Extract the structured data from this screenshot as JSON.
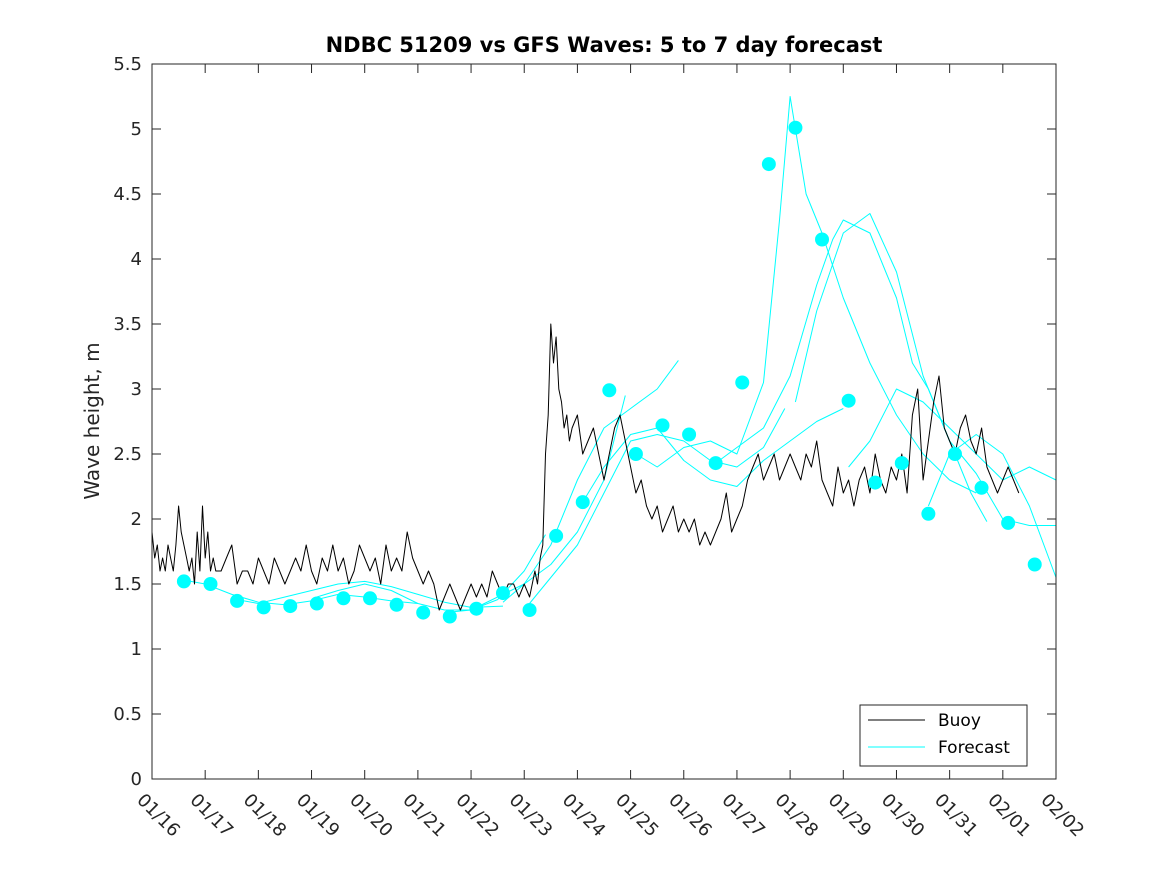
{
  "chart_data": {
    "type": "line",
    "title": "NDBC 51209 vs GFS Waves: 5 to 7 day forecast",
    "xlabel": "",
    "ylabel": "Wave height, m",
    "xlim": [
      0,
      17
    ],
    "ylim": [
      0,
      5.5
    ],
    "yticks": [
      0,
      0.5,
      1,
      1.5,
      2,
      2.5,
      3,
      3.5,
      4,
      4.5,
      5,
      5.5
    ],
    "ytick_labels": [
      "0",
      "0.5",
      "1",
      "1.5",
      "2",
      "2.5",
      "3",
      "3.5",
      "4",
      "4.5",
      "5",
      "5.5"
    ],
    "xtick_labels": [
      "01/16",
      "01/17",
      "01/18",
      "01/19",
      "01/20",
      "01/21",
      "01/22",
      "01/23",
      "01/24",
      "01/25",
      "01/26",
      "01/27",
      "01/28",
      "01/29",
      "01/30",
      "01/31",
      "02/01",
      "02/02"
    ],
    "legend_position": "bottom-right",
    "colors": {
      "buoy": "#000000",
      "forecast": "#00FFFF"
    },
    "series": [
      {
        "name": "Buoy",
        "role": "buoy",
        "x": [
          0.0,
          0.05,
          0.1,
          0.15,
          0.2,
          0.25,
          0.3,
          0.35,
          0.4,
          0.45,
          0.5,
          0.55,
          0.6,
          0.65,
          0.7,
          0.75,
          0.8,
          0.85,
          0.9,
          0.95,
          1.0,
          1.05,
          1.1,
          1.15,
          1.2,
          1.3,
          1.4,
          1.5,
          1.6,
          1.7,
          1.8,
          1.9,
          2.0,
          2.1,
          2.2,
          2.3,
          2.4,
          2.5,
          2.6,
          2.7,
          2.8,
          2.9,
          3.0,
          3.1,
          3.2,
          3.3,
          3.4,
          3.5,
          3.6,
          3.7,
          3.8,
          3.9,
          4.0,
          4.1,
          4.2,
          4.3,
          4.4,
          4.5,
          4.6,
          4.7,
          4.8,
          4.9,
          5.0,
          5.1,
          5.2,
          5.3,
          5.4,
          5.5,
          5.6,
          5.7,
          5.8,
          5.9,
          6.0,
          6.1,
          6.2,
          6.3,
          6.4,
          6.5,
          6.6,
          6.7,
          6.8,
          6.9,
          7.0,
          7.1,
          7.2,
          7.25,
          7.3,
          7.35,
          7.4,
          7.45,
          7.5,
          7.55,
          7.6,
          7.65,
          7.7,
          7.75,
          7.8,
          7.85,
          7.9,
          8.0,
          8.1,
          8.2,
          8.3,
          8.4,
          8.5,
          8.6,
          8.7,
          8.8,
          8.9,
          9.0,
          9.1,
          9.2,
          9.3,
          9.4,
          9.5,
          9.6,
          9.7,
          9.8,
          9.9,
          10.0,
          10.1,
          10.2,
          10.3,
          10.4,
          10.5,
          10.6,
          10.7,
          10.8,
          10.9,
          11.0,
          11.1,
          11.2,
          11.3,
          11.4,
          11.5,
          11.6,
          11.7,
          11.8,
          11.9,
          12.0,
          12.1,
          12.2,
          12.3,
          12.4,
          12.5,
          12.6,
          12.7,
          12.8,
          12.9,
          13.0,
          13.1,
          13.2,
          13.3,
          13.4,
          13.5,
          13.6,
          13.7,
          13.8,
          13.9,
          14.0,
          14.1,
          14.2,
          14.3,
          14.4,
          14.5,
          14.6,
          14.7,
          14.8,
          14.9,
          15.0,
          15.1,
          15.2,
          15.3,
          15.4,
          15.5,
          15.6,
          15.7,
          15.8,
          15.9,
          16.0,
          16.1,
          16.2,
          16.3
        ],
        "values": [
          1.9,
          1.7,
          1.8,
          1.6,
          1.7,
          1.6,
          1.8,
          1.7,
          1.6,
          1.8,
          2.1,
          1.9,
          1.8,
          1.7,
          1.6,
          1.7,
          1.5,
          1.9,
          1.6,
          2.1,
          1.7,
          1.9,
          1.6,
          1.7,
          1.6,
          1.6,
          1.7,
          1.8,
          1.5,
          1.6,
          1.6,
          1.5,
          1.7,
          1.6,
          1.5,
          1.7,
          1.6,
          1.5,
          1.6,
          1.7,
          1.6,
          1.8,
          1.6,
          1.5,
          1.7,
          1.6,
          1.8,
          1.6,
          1.7,
          1.5,
          1.6,
          1.8,
          1.7,
          1.6,
          1.7,
          1.5,
          1.8,
          1.6,
          1.7,
          1.6,
          1.9,
          1.7,
          1.6,
          1.5,
          1.6,
          1.5,
          1.3,
          1.4,
          1.5,
          1.4,
          1.3,
          1.4,
          1.5,
          1.4,
          1.5,
          1.4,
          1.6,
          1.5,
          1.4,
          1.5,
          1.5,
          1.4,
          1.5,
          1.4,
          1.6,
          1.5,
          1.7,
          1.8,
          2.5,
          2.8,
          3.5,
          3.2,
          3.4,
          3.0,
          2.9,
          2.7,
          2.8,
          2.6,
          2.7,
          2.8,
          2.5,
          2.6,
          2.7,
          2.5,
          2.3,
          2.5,
          2.7,
          2.8,
          2.6,
          2.4,
          2.2,
          2.3,
          2.1,
          2.0,
          2.1,
          1.9,
          2.0,
          2.1,
          1.9,
          2.0,
          1.9,
          2.0,
          1.8,
          1.9,
          1.8,
          1.9,
          2.0,
          2.2,
          1.9,
          2.0,
          2.1,
          2.3,
          2.4,
          2.5,
          2.3,
          2.4,
          2.5,
          2.3,
          2.4,
          2.5,
          2.4,
          2.3,
          2.5,
          2.4,
          2.6,
          2.3,
          2.2,
          2.1,
          2.4,
          2.2,
          2.3,
          2.1,
          2.3,
          2.4,
          2.2,
          2.5,
          2.3,
          2.2,
          2.4,
          2.3,
          2.5,
          2.2,
          2.8,
          3.0,
          2.3,
          2.6,
          2.9,
          3.1,
          2.7,
          2.6,
          2.5,
          2.7,
          2.8,
          2.6,
          2.5,
          2.7,
          2.4,
          2.3,
          2.2,
          2.3,
          2.4,
          2.3,
          2.2
        ]
      },
      {
        "name": "Forecast",
        "role": "forecast-line",
        "x": [
          0.6,
          1.0,
          1.5,
          2.0,
          2.5,
          3.0,
          3.5,
          4.0,
          4.5,
          5.0
        ],
        "values": [
          1.53,
          1.5,
          1.42,
          1.36,
          1.34,
          1.37,
          1.42,
          1.4,
          1.37,
          1.35
        ]
      },
      {
        "name": "Forecast",
        "role": "forecast-line",
        "x": [
          1.6,
          2.0,
          2.5,
          3.0,
          3.5,
          4.0,
          4.5,
          5.0,
          5.5,
          6.0,
          6.6
        ],
        "values": [
          1.38,
          1.35,
          1.4,
          1.45,
          1.5,
          1.52,
          1.48,
          1.42,
          1.36,
          1.32,
          1.33
        ]
      },
      {
        "name": "Forecast",
        "role": "forecast-line",
        "x": [
          3.1,
          3.5,
          4.0,
          4.5,
          5.0,
          5.5,
          6.0,
          6.5,
          7.0,
          7.4
        ],
        "values": [
          1.4,
          1.45,
          1.5,
          1.45,
          1.35,
          1.3,
          1.3,
          1.38,
          1.6,
          1.88
        ]
      },
      {
        "name": "Forecast",
        "role": "forecast-line",
        "x": [
          5.5,
          6.0,
          6.5,
          7.0,
          7.5,
          8.0,
          8.5,
          8.9
        ],
        "values": [
          1.28,
          1.3,
          1.4,
          1.5,
          1.65,
          1.9,
          2.3,
          2.95
        ]
      },
      {
        "name": "Forecast",
        "role": "forecast-line",
        "x": [
          6.6,
          7.0,
          7.5,
          8.0,
          8.5,
          9.0,
          9.5,
          9.9
        ],
        "values": [
          1.36,
          1.5,
          1.8,
          2.3,
          2.7,
          2.85,
          3.0,
          3.22
        ]
      },
      {
        "name": "Forecast",
        "role": "forecast-line",
        "x": [
          7.0,
          7.5,
          8.0,
          8.5,
          9.0,
          9.5,
          10.0,
          10.5,
          11.0,
          11.5,
          11.9
        ],
        "values": [
          1.3,
          1.55,
          1.8,
          2.2,
          2.6,
          2.65,
          2.6,
          2.45,
          2.4,
          2.55,
          2.85
        ]
      },
      {
        "name": "Forecast",
        "role": "forecast-line",
        "x": [
          8.1,
          8.5,
          9.0,
          9.5,
          10.0,
          10.5,
          11.0,
          11.5,
          12.0,
          12.5,
          13.0
        ],
        "values": [
          2.13,
          2.4,
          2.65,
          2.7,
          2.45,
          2.3,
          2.25,
          2.45,
          2.6,
          2.75,
          2.85
        ]
      },
      {
        "name": "Forecast",
        "role": "forecast-line",
        "x": [
          9.1,
          9.5,
          10.0,
          10.5,
          11.0,
          11.5,
          11.8,
          12.0,
          12.3,
          12.6,
          13.0,
          13.5,
          14.0,
          14.5,
          15.0,
          15.5
        ],
        "values": [
          2.5,
          2.4,
          2.55,
          2.6,
          2.5,
          3.05,
          4.3,
          5.25,
          4.5,
          4.2,
          3.7,
          3.2,
          2.8,
          2.5,
          2.3,
          2.2
        ]
      },
      {
        "name": "Forecast",
        "role": "forecast-line",
        "x": [
          10.6,
          11.0,
          11.5,
          12.0,
          12.5,
          12.8,
          13.0,
          13.5,
          13.8,
          14.0,
          14.3,
          14.6,
          15.0,
          15.4,
          15.7
        ],
        "values": [
          2.43,
          2.55,
          2.7,
          3.1,
          3.8,
          4.15,
          4.3,
          4.2,
          3.9,
          3.7,
          3.2,
          3.0,
          2.6,
          2.2,
          1.98
        ]
      },
      {
        "name": "Forecast",
        "role": "forecast-line",
        "x": [
          12.1,
          12.5,
          13.0,
          13.5,
          14.0,
          14.5,
          15.0,
          15.5,
          16.0,
          16.5,
          17.0
        ],
        "values": [
          2.9,
          3.6,
          4.2,
          4.35,
          3.9,
          3.1,
          2.6,
          2.35,
          2.0,
          1.95,
          1.95
        ]
      },
      {
        "name": "Forecast",
        "role": "forecast-line",
        "x": [
          13.1,
          13.5,
          14.0,
          14.5,
          15.0,
          15.5,
          16.0,
          16.5,
          17.0
        ],
        "values": [
          2.4,
          2.6,
          3.0,
          2.9,
          2.7,
          2.5,
          2.3,
          2.4,
          2.3
        ]
      },
      {
        "name": "Forecast",
        "role": "forecast-line",
        "x": [
          14.6,
          15.0,
          15.5,
          16.0,
          16.5,
          17.0
        ],
        "values": [
          2.1,
          2.5,
          2.65,
          2.5,
          2.1,
          1.55
        ]
      },
      {
        "name": "Forecast",
        "role": "forecast-dots",
        "x": [
          0.6,
          1.1,
          1.6,
          2.1,
          2.6,
          3.1,
          3.6,
          4.1,
          4.6,
          5.1,
          5.6,
          6.1,
          6.6,
          7.1,
          7.6,
          8.1,
          8.6,
          9.1,
          9.6,
          10.1,
          10.6,
          11.1,
          11.6,
          12.1,
          12.6,
          13.1,
          13.6,
          14.1,
          14.6,
          15.1,
          15.6,
          16.1,
          16.6
        ],
        "values": [
          1.52,
          1.5,
          1.37,
          1.32,
          1.33,
          1.35,
          1.39,
          1.39,
          1.34,
          1.28,
          1.25,
          1.31,
          1.43,
          1.3,
          1.87,
          2.13,
          2.99,
          2.5,
          2.72,
          2.65,
          2.43,
          3.05,
          4.73,
          5.01,
          4.15,
          2.91,
          2.28,
          2.43,
          2.04,
          2.5,
          2.24,
          1.97,
          1.65
        ]
      }
    ]
  }
}
